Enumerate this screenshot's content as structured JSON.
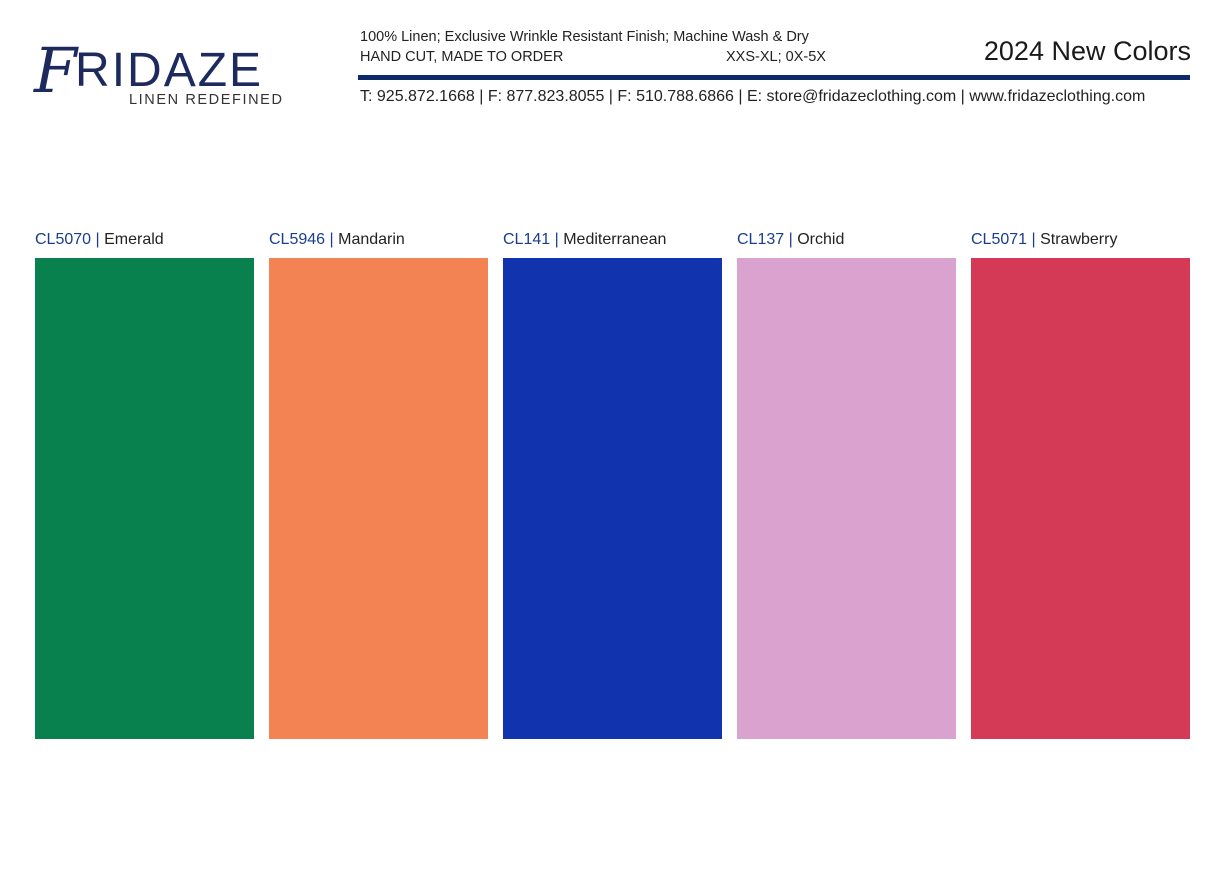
{
  "logo": {
    "brand": "FRIDAZE",
    "tagline": "LINEN REDEFINED"
  },
  "header": {
    "line1": "100% Linen; Exclusive Wrinkle Resistant Finish; Machine Wash & Dry",
    "line2": "HAND CUT, MADE TO ORDER",
    "sizes": "XXS-XL; 0X-5X",
    "title": "2024 New Colors",
    "contact": "T: 925.872.1668 | F: 877.823.8055 | F: 510.788.6866 | E: store@fridazeclothing.com | www.fridazeclothing.com",
    "rule_color": "#0d2a6b"
  },
  "swatches": [
    {
      "code": "CL5070",
      "name": "Emerald",
      "color": "#08814F"
    },
    {
      "code": "CL5946",
      "name": "Mandarin",
      "color": "#F48354"
    },
    {
      "code": "CL141",
      "name": "Mediterranean",
      "color": "#1133AE"
    },
    {
      "code": "CL137",
      "name": "Orchid",
      "color": "#DAA2CE"
    },
    {
      "code": "CL5071",
      "name": "Strawberry",
      "color": "#D43956"
    }
  ]
}
